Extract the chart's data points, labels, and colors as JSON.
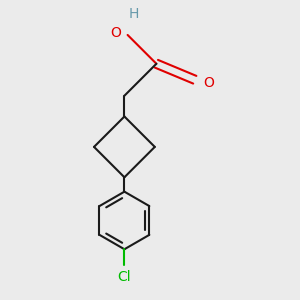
{
  "background_color": "#ebebeb",
  "bond_color": "#1a1a1a",
  "oxygen_color": "#e00000",
  "chlorine_color": "#00bb00",
  "hydrogen_color": "#6699aa",
  "bond_width": 1.5,
  "figsize": [
    3.0,
    3.0
  ],
  "dpi": 100,
  "xlim": [
    0.15,
    0.85
  ],
  "ylim": [
    0.05,
    0.97
  ]
}
